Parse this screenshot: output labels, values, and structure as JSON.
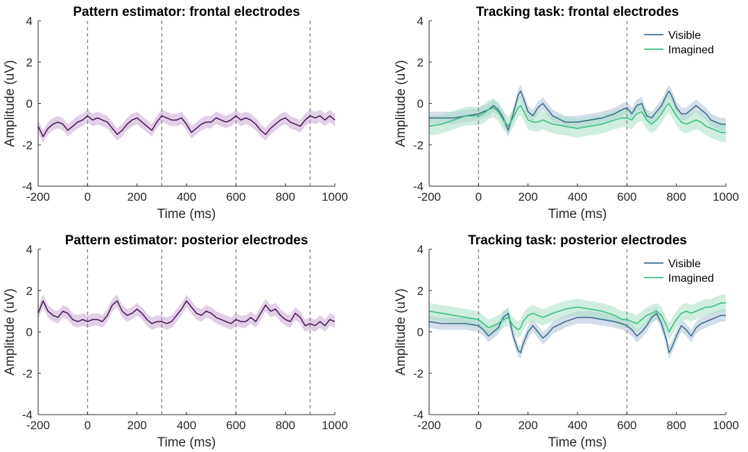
{
  "chart_data": [
    {
      "type": "line",
      "title": "Pattern estimator: frontal electrodes",
      "xlabel": "Time (ms)",
      "ylabel": "Amplitude (uV)",
      "xlim": [
        -200,
        1000
      ],
      "ylim": [
        -4,
        4
      ],
      "x_ticks": [
        "-200",
        "0",
        "200",
        "400",
        "600",
        "800",
        "1000"
      ],
      "y_ticks": [
        "-4",
        "-2",
        "0",
        "2",
        "4"
      ],
      "event_markers_ms": [
        0,
        300,
        600,
        900
      ],
      "legend": "none",
      "series": [
        {
          "color": "#4b1d57",
          "band_color": "#c9a8d4",
          "band_halfwidth": 0.3,
          "x": [
            -200,
            -180,
            -160,
            -140,
            -120,
            -100,
            -80,
            -60,
            -40,
            -20,
            0,
            20,
            40,
            60,
            80,
            100,
            120,
            140,
            160,
            180,
            200,
            220,
            240,
            260,
            280,
            300,
            320,
            340,
            360,
            380,
            400,
            420,
            440,
            460,
            480,
            500,
            520,
            540,
            560,
            580,
            600,
            620,
            640,
            660,
            680,
            700,
            720,
            740,
            760,
            780,
            800,
            820,
            840,
            860,
            880,
            900,
            920,
            940,
            960,
            980,
            1000
          ],
          "y": [
            -1.1,
            -1.6,
            -1.2,
            -1.0,
            -0.9,
            -1.0,
            -1.3,
            -1.1,
            -0.9,
            -0.8,
            -0.6,
            -0.8,
            -0.7,
            -0.8,
            -0.9,
            -1.2,
            -1.5,
            -1.3,
            -1.0,
            -0.8,
            -0.7,
            -0.9,
            -1.1,
            -1.3,
            -0.9,
            -0.6,
            -0.7,
            -0.8,
            -0.8,
            -0.7,
            -1.0,
            -1.4,
            -1.2,
            -1.0,
            -0.9,
            -0.9,
            -0.7,
            -0.8,
            -0.9,
            -0.8,
            -0.6,
            -0.8,
            -0.7,
            -0.8,
            -1.0,
            -1.3,
            -1.5,
            -1.2,
            -1.0,
            -0.8,
            -0.7,
            -0.9,
            -1.0,
            -1.1,
            -0.8,
            -0.6,
            -0.7,
            -0.6,
            -0.8,
            -0.6,
            -0.8
          ]
        }
      ]
    },
    {
      "type": "line",
      "title": "Tracking task: frontal electrodes",
      "xlabel": "Time (ms)",
      "ylabel": "Amplitude (uV)",
      "xlim": [
        -200,
        1000
      ],
      "ylim": [
        -4,
        4
      ],
      "x_ticks": [
        "-200",
        "0",
        "200",
        "400",
        "600",
        "800",
        "1000"
      ],
      "y_ticks": [
        "-4",
        "-2",
        "0",
        "2",
        "4"
      ],
      "event_markers_ms": [
        0,
        600
      ],
      "legend": "top-right",
      "series": [
        {
          "name": "Visible",
          "color": "#3d6e8c",
          "band_color": "#aec3d8",
          "band_halfwidth": 0.3,
          "x": [
            -200,
            -150,
            -100,
            -50,
            0,
            20,
            40,
            60,
            80,
            100,
            120,
            140,
            160,
            170,
            180,
            200,
            220,
            240,
            260,
            280,
            300,
            350,
            400,
            450,
            500,
            550,
            580,
            600,
            620,
            640,
            660,
            680,
            700,
            720,
            740,
            760,
            770,
            780,
            800,
            820,
            840,
            860,
            880,
            900,
            920,
            940,
            960,
            980,
            1000
          ],
          "y": [
            -0.7,
            -0.7,
            -0.7,
            -0.6,
            -0.5,
            -0.4,
            -0.3,
            -0.1,
            -0.3,
            -0.7,
            -1.3,
            -0.5,
            0.4,
            0.6,
            0.3,
            -0.4,
            -0.6,
            -0.2,
            0.0,
            -0.3,
            -0.6,
            -0.9,
            -0.9,
            -0.8,
            -0.7,
            -0.5,
            -0.3,
            -0.2,
            -0.5,
            -0.1,
            0.0,
            -0.6,
            -0.7,
            -0.4,
            -0.1,
            0.4,
            0.6,
            0.4,
            -0.2,
            -0.5,
            -0.5,
            -0.3,
            -0.1,
            -0.3,
            -0.5,
            -0.8,
            -0.9,
            -1.0,
            -1.0
          ]
        },
        {
          "name": "Imagined",
          "color": "#3cc080",
          "band_color": "#a8e0c4",
          "band_halfwidth": 0.45,
          "x": [
            -200,
            -150,
            -100,
            -50,
            0,
            20,
            40,
            60,
            80,
            100,
            120,
            140,
            160,
            170,
            180,
            200,
            220,
            240,
            260,
            280,
            300,
            350,
            400,
            450,
            500,
            550,
            580,
            600,
            620,
            640,
            660,
            680,
            700,
            720,
            740,
            760,
            770,
            780,
            800,
            820,
            840,
            860,
            880,
            900,
            920,
            940,
            960,
            980,
            1000
          ],
          "y": [
            -1.1,
            -1.0,
            -0.8,
            -0.6,
            -0.6,
            -0.5,
            -0.3,
            -0.2,
            -0.4,
            -0.8,
            -1.1,
            -0.7,
            -0.2,
            -0.1,
            -0.3,
            -0.8,
            -0.9,
            -0.9,
            -0.8,
            -0.9,
            -1.0,
            -1.1,
            -1.2,
            -1.1,
            -1.0,
            -0.8,
            -0.7,
            -0.7,
            -0.8,
            -0.5,
            -0.4,
            -0.8,
            -1.0,
            -0.8,
            -0.5,
            -0.1,
            0.0,
            -0.2,
            -0.6,
            -0.9,
            -1.0,
            -0.9,
            -0.8,
            -0.9,
            -1.1,
            -1.2,
            -1.3,
            -1.4,
            -1.4
          ]
        }
      ]
    },
    {
      "type": "line",
      "title": "Pattern estimator: posterior electrodes",
      "xlabel": "Time (ms)",
      "ylabel": "Amplitude (uV)",
      "xlim": [
        -200,
        1000
      ],
      "ylim": [
        -4,
        4
      ],
      "x_ticks": [
        "-200",
        "0",
        "200",
        "400",
        "600",
        "800",
        "1000"
      ],
      "y_ticks": [
        "-4",
        "-2",
        "0",
        "2",
        "4"
      ],
      "event_markers_ms": [
        0,
        300,
        600,
        900
      ],
      "legend": "none",
      "series": [
        {
          "color": "#4b1d57",
          "band_color": "#c9a8d4",
          "band_halfwidth": 0.3,
          "x": [
            -200,
            -180,
            -160,
            -140,
            -120,
            -100,
            -80,
            -60,
            -40,
            -20,
            0,
            20,
            40,
            60,
            80,
            100,
            120,
            140,
            160,
            180,
            200,
            220,
            240,
            260,
            280,
            300,
            320,
            340,
            360,
            380,
            400,
            420,
            440,
            460,
            480,
            500,
            520,
            540,
            560,
            580,
            600,
            620,
            640,
            660,
            680,
            700,
            720,
            740,
            760,
            780,
            800,
            820,
            840,
            860,
            880,
            900,
            920,
            940,
            960,
            980,
            1000
          ],
          "y": [
            0.9,
            1.5,
            1.0,
            0.8,
            0.7,
            1.0,
            0.9,
            0.6,
            0.5,
            0.6,
            0.5,
            0.6,
            0.6,
            0.5,
            0.8,
            1.3,
            1.5,
            1.0,
            0.8,
            0.9,
            1.1,
            0.9,
            0.6,
            0.4,
            0.5,
            0.5,
            0.4,
            0.5,
            0.8,
            1.1,
            1.5,
            1.2,
            0.9,
            0.8,
            1.0,
            0.9,
            0.7,
            0.6,
            0.5,
            0.4,
            0.6,
            0.5,
            0.5,
            0.7,
            0.5,
            0.9,
            1.3,
            1.0,
            1.1,
            0.8,
            0.6,
            0.5,
            0.9,
            0.7,
            0.3,
            0.4,
            0.3,
            0.5,
            0.3,
            0.6,
            0.5
          ]
        }
      ]
    },
    {
      "type": "line",
      "title": "Tracking task: posterior electrodes",
      "xlabel": "Time (ms)",
      "ylabel": "Amplitude (uV)",
      "xlim": [
        -200,
        1000
      ],
      "ylim": [
        -4,
        4
      ],
      "x_ticks": [
        "-200",
        "0",
        "200",
        "400",
        "600",
        "800",
        "1000"
      ],
      "y_ticks": [
        "-4",
        "-2",
        "0",
        "2",
        "4"
      ],
      "event_markers_ms": [
        0,
        600
      ],
      "legend": "top-right",
      "series": [
        {
          "name": "Visible",
          "color": "#3d6e8c",
          "band_color": "#aec3d8",
          "band_halfwidth": 0.3,
          "x": [
            -200,
            -150,
            -100,
            -50,
            0,
            20,
            40,
            60,
            80,
            100,
            120,
            140,
            160,
            170,
            180,
            200,
            220,
            240,
            260,
            280,
            300,
            350,
            400,
            450,
            500,
            550,
            580,
            600,
            620,
            640,
            660,
            680,
            700,
            720,
            740,
            760,
            770,
            780,
            800,
            820,
            840,
            860,
            880,
            900,
            920,
            940,
            960,
            980,
            1000
          ],
          "y": [
            0.5,
            0.4,
            0.4,
            0.4,
            0.3,
            0.1,
            -0.2,
            0.0,
            0.2,
            0.7,
            0.9,
            -0.2,
            -0.9,
            -1.0,
            -0.6,
            0.0,
            0.3,
            0.0,
            -0.3,
            -0.1,
            0.2,
            0.5,
            0.7,
            0.7,
            0.6,
            0.5,
            0.4,
            0.3,
            0.1,
            -0.2,
            0.0,
            0.3,
            0.7,
            0.9,
            0.4,
            -0.4,
            -1.0,
            -0.8,
            -0.2,
            0.3,
            0.1,
            -0.2,
            0.2,
            0.4,
            0.5,
            0.6,
            0.7,
            0.8,
            0.8
          ]
        },
        {
          "name": "Imagined",
          "color": "#3cc080",
          "band_color": "#a8e0c4",
          "band_halfwidth": 0.4,
          "x": [
            -200,
            -150,
            -100,
            -50,
            0,
            20,
            40,
            60,
            80,
            100,
            120,
            140,
            160,
            170,
            180,
            200,
            220,
            240,
            260,
            280,
            300,
            350,
            400,
            450,
            500,
            550,
            580,
            600,
            620,
            640,
            660,
            680,
            700,
            720,
            740,
            760,
            770,
            780,
            800,
            820,
            840,
            860,
            880,
            900,
            920,
            940,
            960,
            980,
            1000
          ],
          "y": [
            1.0,
            0.9,
            0.8,
            0.7,
            0.6,
            0.4,
            0.2,
            0.3,
            0.4,
            0.6,
            0.7,
            0.3,
            0.1,
            0.2,
            0.5,
            0.8,
            0.9,
            0.8,
            0.7,
            0.8,
            0.9,
            1.1,
            1.2,
            1.1,
            1.0,
            0.8,
            0.6,
            0.6,
            0.5,
            0.4,
            0.6,
            0.8,
            0.9,
            1.0,
            0.8,
            0.3,
            0.0,
            0.2,
            0.6,
            0.9,
            1.0,
            0.9,
            1.0,
            1.1,
            1.2,
            1.2,
            1.3,
            1.4,
            1.4
          ]
        }
      ]
    }
  ]
}
